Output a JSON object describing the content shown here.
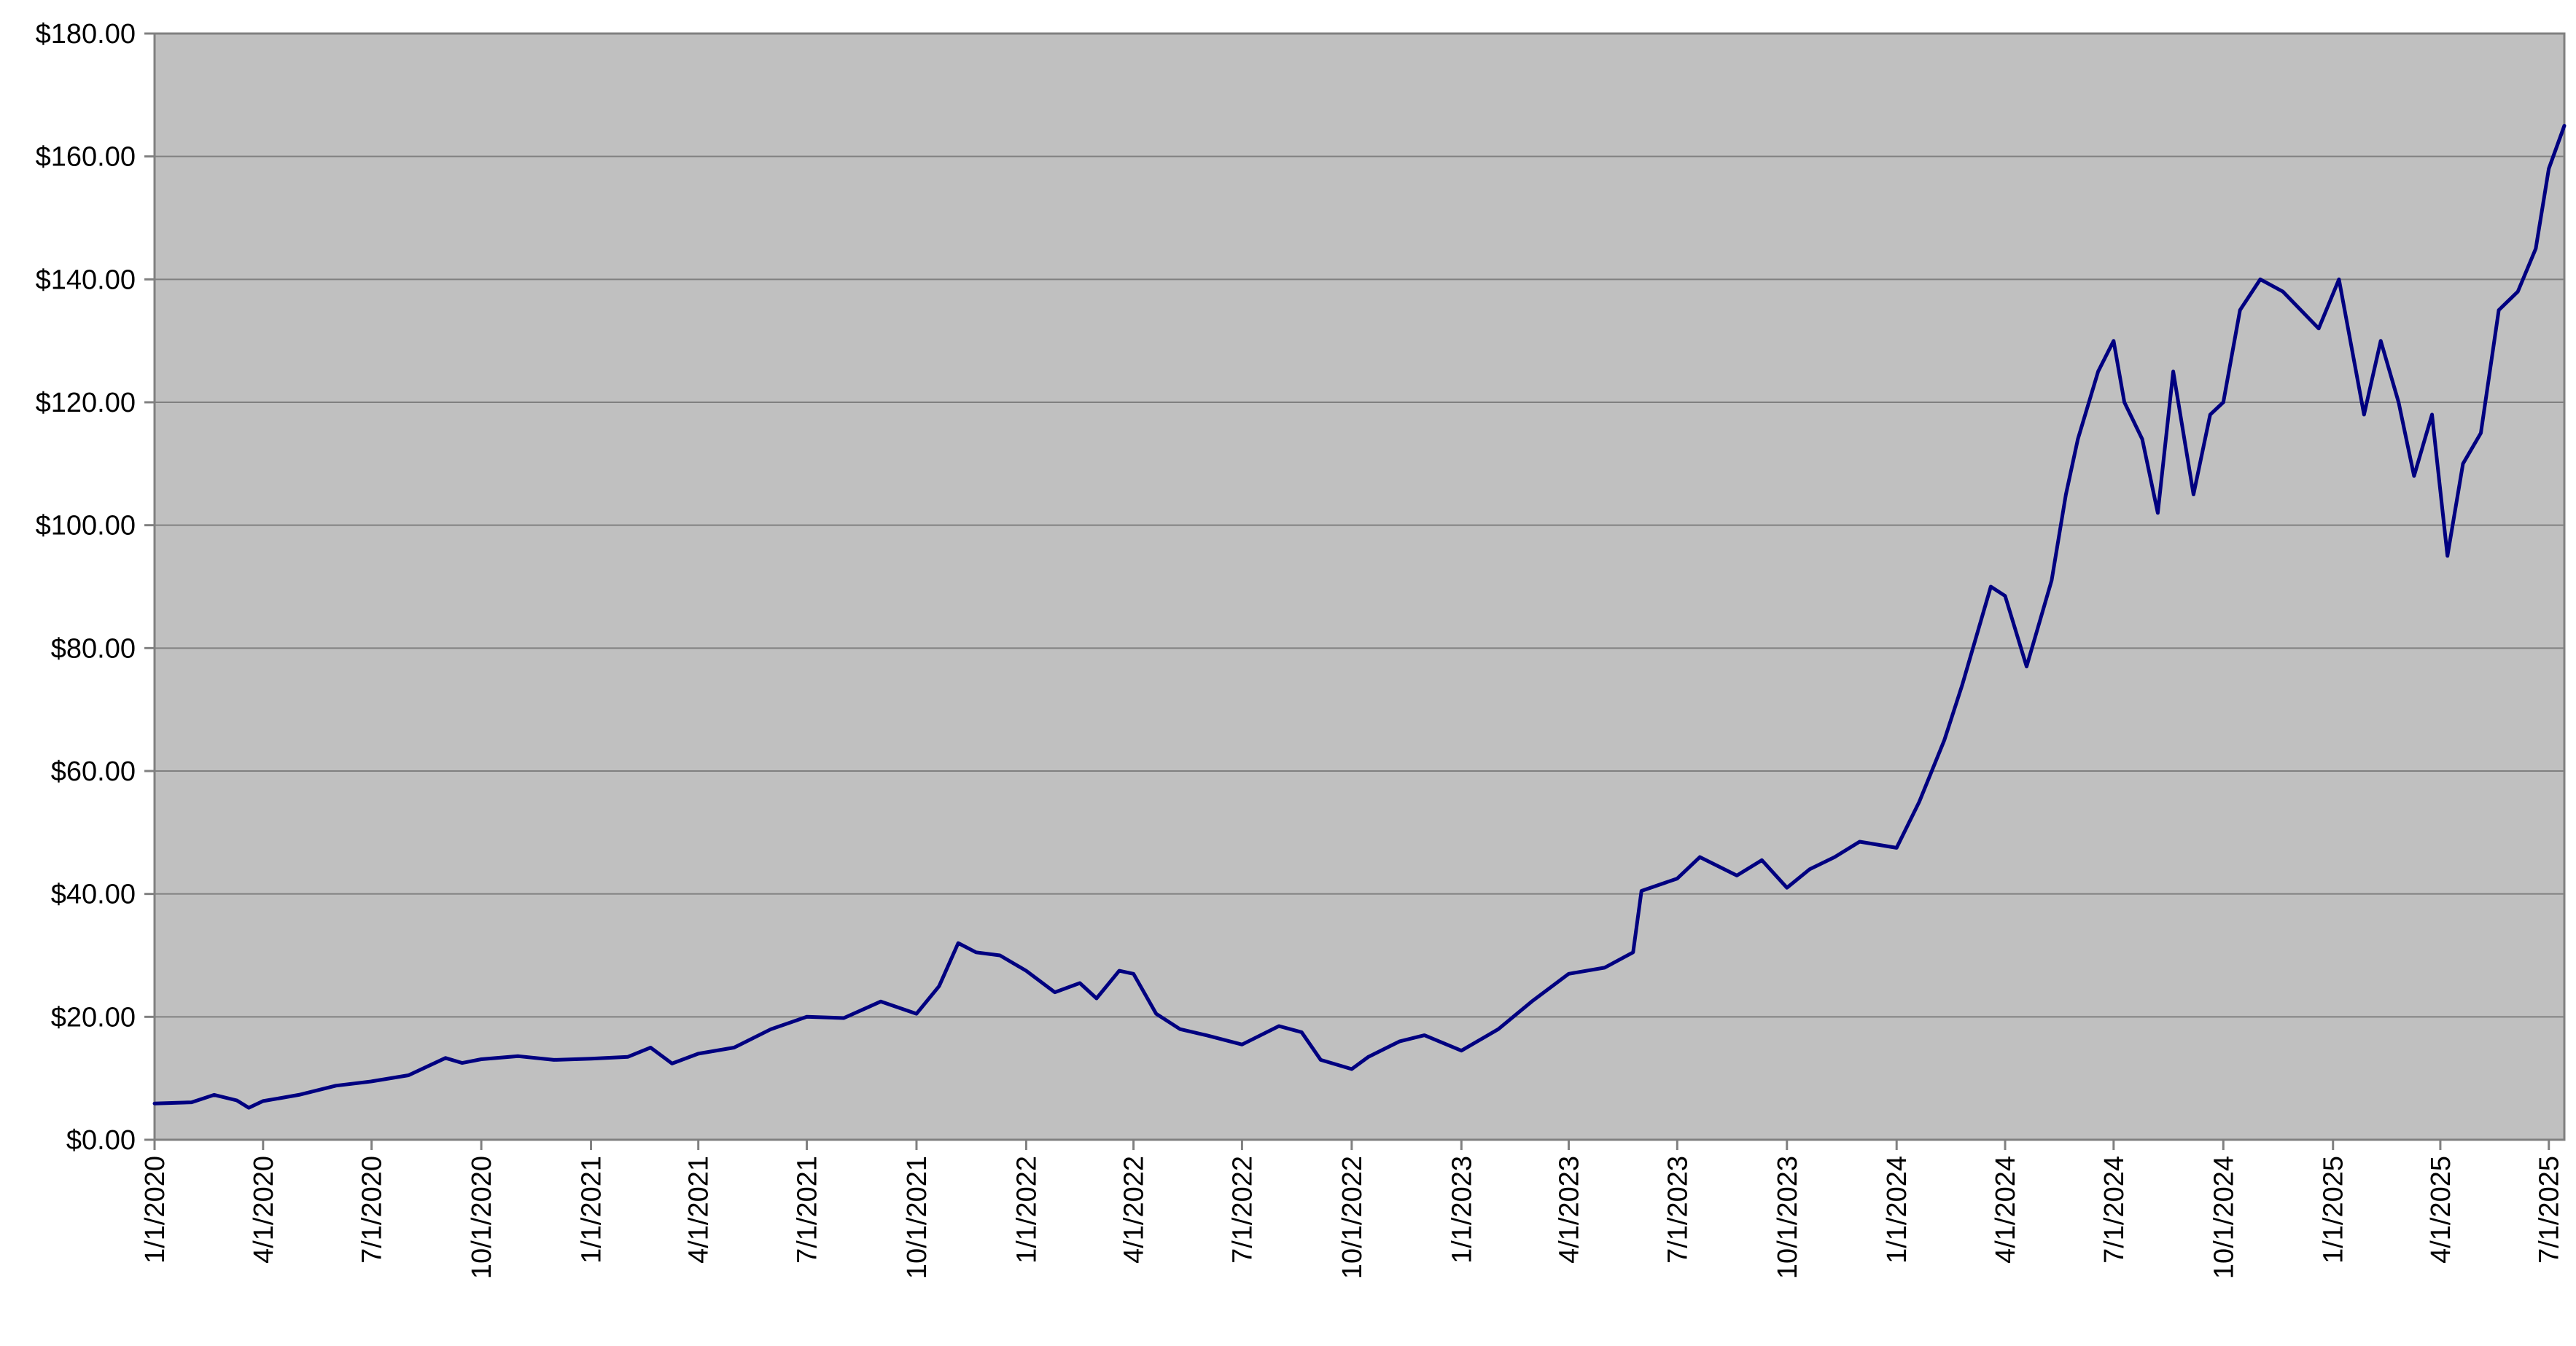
{
  "chart_data": {
    "type": "line",
    "title": "",
    "xlabel": "",
    "ylabel": "",
    "x_range": [
      "1/1/2020",
      "7/14/2025"
    ],
    "ylim": [
      0,
      180
    ],
    "y_ticks": [
      0,
      20,
      40,
      60,
      80,
      100,
      120,
      140,
      160,
      180
    ],
    "y_tick_labels": [
      "$0.00",
      "$20.00",
      "$40.00",
      "$60.00",
      "$80.00",
      "$100.00",
      "$120.00",
      "$140.00",
      "$160.00",
      "$180.00"
    ],
    "x_ticks": [
      "2020-01-01",
      "2020-04-01",
      "2020-07-01",
      "2020-10-01",
      "2021-01-01",
      "2021-04-01",
      "2021-07-01",
      "2021-10-01",
      "2022-01-01",
      "2022-04-01",
      "2022-07-01",
      "2022-10-01",
      "2023-01-01",
      "2023-04-01",
      "2023-07-01",
      "2023-10-01",
      "2024-01-01",
      "2024-04-01",
      "2024-07-01",
      "2024-10-01",
      "2025-01-01",
      "2025-04-01",
      "2025-07-01"
    ],
    "x_tick_labels": [
      "1/1/2020",
      "4/1/2020",
      "7/1/2020",
      "10/1/2020",
      "1/1/2021",
      "4/1/2021",
      "7/1/2021",
      "10/1/2021",
      "1/1/2022",
      "4/1/2022",
      "7/1/2022",
      "10/1/2022",
      "1/1/2023",
      "4/1/2023",
      "7/1/2023",
      "10/1/2023",
      "1/1/2024",
      "4/1/2024",
      "7/1/2024",
      "10/1/2024",
      "1/1/2025",
      "4/1/2025",
      "7/1/2025"
    ],
    "grid": "horizontal",
    "legend": "none",
    "colors": {
      "line": "#000080",
      "plot_background": "#c0c0c0",
      "gridline": "#808080",
      "axis": "#808080"
    },
    "series": [
      {
        "x": [
          "2020-01-01",
          "2020-02-01",
          "2020-02-20",
          "2020-03-10",
          "2020-03-20",
          "2020-04-01",
          "2020-05-01",
          "2020-06-01",
          "2020-07-01",
          "2020-08-01",
          "2020-09-01",
          "2020-09-15",
          "2020-10-01",
          "2020-11-01",
          "2020-12-01",
          "2021-01-01",
          "2021-02-01",
          "2021-02-20",
          "2021-03-10",
          "2021-04-01",
          "2021-05-01",
          "2021-06-01",
          "2021-07-01",
          "2021-08-01",
          "2021-09-01",
          "2021-10-01",
          "2021-10-20",
          "2021-11-05",
          "2021-11-20",
          "2021-12-10",
          "2022-01-01",
          "2022-01-25",
          "2022-02-15",
          "2022-03-01",
          "2022-03-20",
          "2022-04-01",
          "2022-04-20",
          "2022-05-10",
          "2022-06-01",
          "2022-07-01",
          "2022-08-01",
          "2022-08-20",
          "2022-09-05",
          "2022-10-01",
          "2022-10-15",
          "2022-11-10",
          "2022-12-01",
          "2023-01-01",
          "2023-02-01",
          "2023-03-01",
          "2023-04-01",
          "2023-05-01",
          "2023-05-25",
          "2023-06-01",
          "2023-07-01",
          "2023-07-20",
          "2023-08-20",
          "2023-09-10",
          "2023-10-01",
          "2023-10-20",
          "2023-11-10",
          "2023-12-01",
          "2024-01-01",
          "2024-01-20",
          "2024-02-10",
          "2024-02-25",
          "2024-03-08",
          "2024-03-20",
          "2024-04-01",
          "2024-04-19",
          "2024-05-10",
          "2024-05-22",
          "2024-06-01",
          "2024-06-18",
          "2024-07-01",
          "2024-07-10",
          "2024-07-25",
          "2024-08-07",
          "2024-08-20",
          "2024-09-06",
          "2024-09-20",
          "2024-10-01",
          "2024-10-15",
          "2024-11-01",
          "2024-11-20",
          "2024-12-05",
          "2024-12-20",
          "2025-01-06",
          "2025-01-27",
          "2025-02-10",
          "2025-02-25",
          "2025-03-10",
          "2025-03-25",
          "2025-04-07",
          "2025-04-20",
          "2025-05-05",
          "2025-05-20",
          "2025-06-05",
          "2025-06-20",
          "2025-07-01",
          "2025-07-14"
        ],
        "y": [
          5.9,
          6.1,
          7.3,
          6.4,
          5.2,
          6.3,
          7.3,
          8.8,
          9.5,
          10.5,
          13.3,
          12.5,
          13.1,
          13.6,
          13.0,
          13.2,
          13.5,
          15.0,
          12.4,
          14.0,
          15.0,
          18.0,
          20.0,
          19.8,
          22.5,
          20.5,
          25.0,
          32.0,
          30.5,
          30.0,
          27.5,
          24.0,
          25.5,
          23.0,
          27.5,
          27.0,
          20.5,
          18.0,
          17.0,
          15.5,
          18.5,
          17.5,
          13.0,
          11.5,
          13.5,
          16.0,
          17.0,
          14.5,
          18.0,
          22.5,
          27.0,
          28.0,
          30.5,
          40.5,
          42.5,
          46.0,
          43.0,
          45.5,
          41.0,
          44.0,
          46.0,
          48.5,
          47.5,
          55.0,
          65.0,
          74.0,
          82.0,
          90.0,
          88.5,
          77.0,
          91.0,
          105.0,
          114.0,
          125.0,
          130.0,
          120.0,
          114.0,
          102.0,
          125.0,
          105.0,
          118.0,
          120.0,
          135.0,
          140.0,
          138.0,
          135.0,
          132.0,
          140.0,
          118.0,
          130.0,
          120.0,
          108.0,
          118.0,
          95.0,
          110.0,
          115.0,
          135.0,
          138.0,
          145.0,
          158.0,
          165.0
        ]
      }
    ]
  }
}
